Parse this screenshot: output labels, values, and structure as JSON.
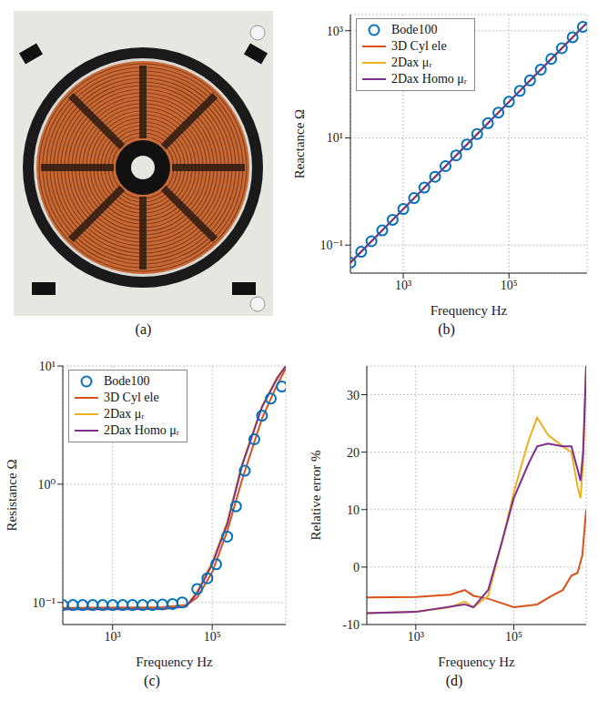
{
  "chart_data": [
    {
      "type": "image",
      "title": "(a)"
    },
    {
      "type": "line",
      "title": "(b)",
      "x_label": "Frequency Hz",
      "y_label": "Reactance Ω",
      "log": true,
      "grid": true,
      "legend": "upper left",
      "xlim": [
        100,
        3000000
      ],
      "xticks": [
        {
          "value": 1000,
          "label": "10³"
        },
        {
          "value": 100000,
          "label": "10⁵"
        }
      ],
      "ylim": [
        0.03,
        2000
      ],
      "yticks": [
        {
          "value": 0.1,
          "label": "10⁻¹"
        },
        {
          "value": 10,
          "label": "10¹"
        },
        {
          "value": 1000,
          "label": "10³"
        }
      ],
      "series": [
        {
          "name": "Bode100",
          "color": "#0072BD",
          "marker": "o",
          "line_style": "none",
          "x": [
            100,
            160,
            250,
            400,
            630,
            1000,
            1600,
            2500,
            4000,
            6300,
            10000,
            16000,
            25000,
            40000,
            63000,
            100000,
            160000,
            250000,
            400000,
            630000,
            1000000,
            1600000,
            2500000
          ],
          "values": [
            0.047,
            0.075,
            0.118,
            0.188,
            0.297,
            0.471,
            0.754,
            1.18,
            1.88,
            2.97,
            4.71,
            7.54,
            11.8,
            18.8,
            29.7,
            47.1,
            75.4,
            118,
            188,
            297,
            471,
            754,
            1180
          ]
        },
        {
          "name": "3D Cyl ele",
          "color": "#D95319",
          "line_style": "solid",
          "x": [
            100,
            1000,
            10000,
            100000,
            1000000,
            3000000
          ],
          "values": [
            0.047,
            0.47,
            4.7,
            47,
            470,
            1410
          ]
        },
        {
          "name": "2Dax μᵣ",
          "color": "#EDB120",
          "line_style": "solid",
          "x": [
            100,
            1000,
            10000,
            100000,
            1000000,
            3000000
          ],
          "values": [
            0.047,
            0.471,
            4.71,
            47.1,
            471,
            1413
          ]
        },
        {
          "name": "2Dax Homo μᵣ",
          "color": "#7E2F8E",
          "line_style": "solid",
          "x": [
            100,
            1000,
            10000,
            100000,
            1000000,
            3000000
          ],
          "values": [
            0.047,
            0.471,
            4.71,
            47.1,
            471,
            1413
          ]
        }
      ]
    },
    {
      "type": "line",
      "title": "(c)",
      "x_label": "Frequency Hz",
      "y_label": "Resistance Ω",
      "log": true,
      "grid": true,
      "legend": "upper left",
      "xlim": [
        100,
        3000000
      ],
      "xticks": [
        {
          "value": 1000,
          "label": "10³"
        },
        {
          "value": 100000,
          "label": "10⁵"
        }
      ],
      "ylim": [
        0.065,
        10
      ],
      "yticks": [
        {
          "value": 0.1,
          "label": "10⁻¹"
        },
        {
          "value": 1,
          "label": "10⁰"
        },
        {
          "value": 10,
          "label": "10¹"
        }
      ],
      "series": [
        {
          "name": "Bode100",
          "color": "#0072BD",
          "marker": "o",
          "line_style": "none",
          "x": [
            100,
            160,
            250,
            400,
            630,
            1000,
            1600,
            2500,
            4000,
            6300,
            10000,
            16000,
            25000,
            50000,
            80000,
            120000,
            200000,
            300000,
            450000,
            700000,
            1000000,
            1500000,
            2500000
          ],
          "values": [
            0.095,
            0.095,
            0.095,
            0.095,
            0.095,
            0.095,
            0.095,
            0.095,
            0.095,
            0.095,
            0.096,
            0.097,
            0.1,
            0.13,
            0.16,
            0.21,
            0.36,
            0.65,
            1.3,
            2.4,
            3.8,
            5.3,
            6.7
          ]
        },
        {
          "name": "3D Cyl ele",
          "color": "#D95319",
          "line_style": "solid",
          "x": [
            100,
            10000,
            30000,
            50000,
            100000,
            200000,
            400000,
            1000000,
            2000000,
            3000000
          ],
          "values": [
            0.09,
            0.091,
            0.095,
            0.11,
            0.18,
            0.4,
            1.1,
            3.6,
            6.9,
            9.5
          ]
        },
        {
          "name": "2Dax μᵣ",
          "color": "#EDB120",
          "line_style": "solid",
          "x": [
            100,
            10000,
            30000,
            50000,
            100000,
            200000,
            400000,
            1000000,
            2000000,
            3000000
          ],
          "values": [
            0.0875,
            0.088,
            0.093,
            0.125,
            0.22,
            0.48,
            1.5,
            4.6,
            8,
            10
          ]
        },
        {
          "name": "2Dax Homo μᵣ",
          "color": "#7E2F8E",
          "line_style": "solid",
          "x": [
            100,
            10000,
            30000,
            50000,
            100000,
            200000,
            400000,
            1000000,
            2000000,
            3000000
          ],
          "values": [
            0.0875,
            0.088,
            0.092,
            0.12,
            0.21,
            0.46,
            1.45,
            4.5,
            7.8,
            10
          ]
        }
      ]
    },
    {
      "type": "line",
      "title": "(d)",
      "x_label": "Frequency Hz",
      "y_label": "Relative error %",
      "log": "x",
      "grid": true,
      "xlim": [
        100,
        3000000
      ],
      "xticks": [
        {
          "value": 1000,
          "label": "10³"
        },
        {
          "value": 100000,
          "label": "10⁵"
        }
      ],
      "ylim": [
        -10,
        35
      ],
      "yticks": [
        -10,
        0,
        10,
        20,
        30
      ],
      "series": [
        {
          "color": "#D95319",
          "line_style": "solid",
          "x": [
            100,
            1000,
            5000,
            10000,
            15000,
            30000,
            100000,
            300000,
            600000,
            1000000,
            1500000,
            2000000,
            2500000,
            3000000
          ],
          "values": [
            -5.3,
            -5.2,
            -4.8,
            -4,
            -5,
            -5.5,
            -7,
            -6.5,
            -5,
            -4,
            -1.5,
            -1,
            2,
            10
          ]
        },
        {
          "color": "#EDB120",
          "line_style": "solid",
          "x": [
            100,
            1000,
            5000,
            10000,
            15000,
            30000,
            60000,
            100000,
            200000,
            300000,
            500000,
            1000000,
            1500000,
            2000000,
            2300000,
            2600000,
            3000000
          ],
          "values": [
            -8,
            -7.8,
            -7,
            -6,
            -7,
            -5,
            5,
            13,
            22,
            26,
            23,
            21,
            20,
            14,
            12,
            18,
            35
          ]
        },
        {
          "color": "#7E2F8E",
          "line_style": "solid",
          "x": [
            100,
            1000,
            10000,
            15000,
            30000,
            60000,
            100000,
            200000,
            300000,
            500000,
            1000000,
            1500000,
            2000000,
            2300000,
            2600000,
            3000000
          ],
          "values": [
            -8,
            -7.8,
            -6.5,
            -7,
            -4,
            5,
            12,
            18,
            21,
            21.5,
            21,
            21,
            17,
            15,
            20,
            35
          ]
        }
      ]
    }
  ]
}
